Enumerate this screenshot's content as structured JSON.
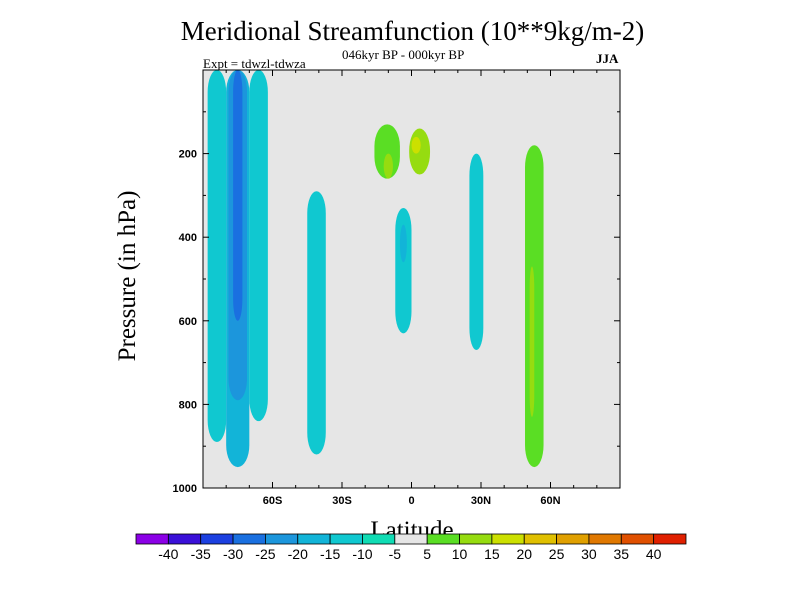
{
  "chart_data": {
    "type": "contour",
    "title": "Meridional Streamfunction (10**9kg/m-2)",
    "subtitle": "046kyr BP - 000kyr BP",
    "annotation_left": "Expt = tdwzl-tdwza",
    "annotation_right": "JJA",
    "xlabel": "Latitude",
    "ylabel": "Pressure (in hPa)",
    "x_ticks": [
      "60S",
      "30S",
      "0",
      "30N",
      "60N"
    ],
    "x_tick_values": [
      -60,
      -30,
      0,
      30,
      60
    ],
    "xlim": [
      -90,
      90
    ],
    "y_ticks": [
      "200",
      "400",
      "600",
      "800",
      "1000"
    ],
    "y_tick_values": [
      200,
      400,
      600,
      800,
      1000
    ],
    "ylim": [
      1000,
      0
    ],
    "background_color": "#e6e6e6",
    "colorbar": {
      "labels": [
        "-40",
        "-35",
        "-30",
        "-25",
        "-20",
        "-15",
        "-10",
        "-5",
        "5",
        "10",
        "15",
        "20",
        "25",
        "30",
        "35",
        "40"
      ],
      "colors": [
        "#8b00e6",
        "#3a10d8",
        "#1c40e0",
        "#1a70e0",
        "#1c96dc",
        "#12b4d8",
        "#10c8d0",
        "#10dcb4",
        "#e6e6e6",
        "#5ade24",
        "#96dc10",
        "#cce000",
        "#e0c000",
        "#e0a000",
        "#e07800",
        "#e05000",
        "#e02000"
      ]
    },
    "regions": [
      {
        "lat": [
          -88,
          -80
        ],
        "p": [
          0,
          890
        ],
        "level": "-10"
      },
      {
        "lat": [
          -80,
          -70
        ],
        "p": [
          0,
          950
        ],
        "level": "-15"
      },
      {
        "lat": [
          -79,
          -71
        ],
        "p": [
          0,
          790
        ],
        "level": "-20"
      },
      {
        "lat": [
          -77,
          -73
        ],
        "p": [
          0,
          600
        ],
        "level": "-25"
      },
      {
        "lat": [
          -70,
          -62
        ],
        "p": [
          0,
          840
        ],
        "level": "-10"
      },
      {
        "lat": [
          -45,
          -37
        ],
        "p": [
          290,
          920
        ],
        "level": "-10"
      },
      {
        "lat": [
          -29,
          -13
        ],
        "p": [
          340,
          950
        ],
        "level": "5"
      },
      {
        "lat": [
          -8,
          8
        ],
        "p": [
          110,
          310
        ],
        "level": "5"
      },
      {
        "lat": [
          -16,
          -5
        ],
        "p": [
          130,
          260
        ],
        "level": "10"
      },
      {
        "lat": [
          -12,
          -8
        ],
        "p": [
          200,
          260
        ],
        "level": "15"
      },
      {
        "lat": [
          -1,
          8
        ],
        "p": [
          140,
          250
        ],
        "level": "15"
      },
      {
        "lat": [
          0,
          4
        ],
        "p": [
          160,
          200
        ],
        "level": "20"
      },
      {
        "lat": [
          -1,
          4
        ],
        "p": [
          0,
          130
        ],
        "level": "5"
      },
      {
        "lat": [
          -14,
          -6
        ],
        "p": [
          280,
          940
        ],
        "level": "5"
      },
      {
        "lat": [
          -8,
          0
        ],
        "p": [
          380,
          570
        ],
        "level": "5"
      },
      {
        "lat": [
          -7,
          0
        ],
        "p": [
          330,
          630
        ],
        "level": "-10"
      },
      {
        "lat": [
          -5,
          -2
        ],
        "p": [
          370,
          460
        ],
        "level": "-15"
      },
      {
        "lat": [
          -3,
          3
        ],
        "p": [
          750,
          940
        ],
        "level": "5"
      },
      {
        "lat": [
          10,
          17
        ],
        "p": [
          280,
          730
        ],
        "level": "5"
      },
      {
        "lat": [
          25,
          31
        ],
        "p": [
          200,
          670
        ],
        "level": "-10"
      },
      {
        "lat": [
          36,
          38
        ],
        "p": [
          0,
          120
        ],
        "level": "5"
      },
      {
        "lat": [
          45,
          61
        ],
        "p": [
          160,
          930
        ],
        "level": "5"
      },
      {
        "lat": [
          49,
          57
        ],
        "p": [
          180,
          950
        ],
        "level": "10"
      },
      {
        "lat": [
          51,
          53
        ],
        "p": [
          470,
          830
        ],
        "level": "15"
      },
      {
        "lat": [
          63,
          65
        ],
        "p": [
          0,
          110
        ],
        "level": "5"
      },
      {
        "lat": [
          70,
          71
        ],
        "p": [
          720,
          790
        ],
        "level": "5"
      }
    ]
  }
}
